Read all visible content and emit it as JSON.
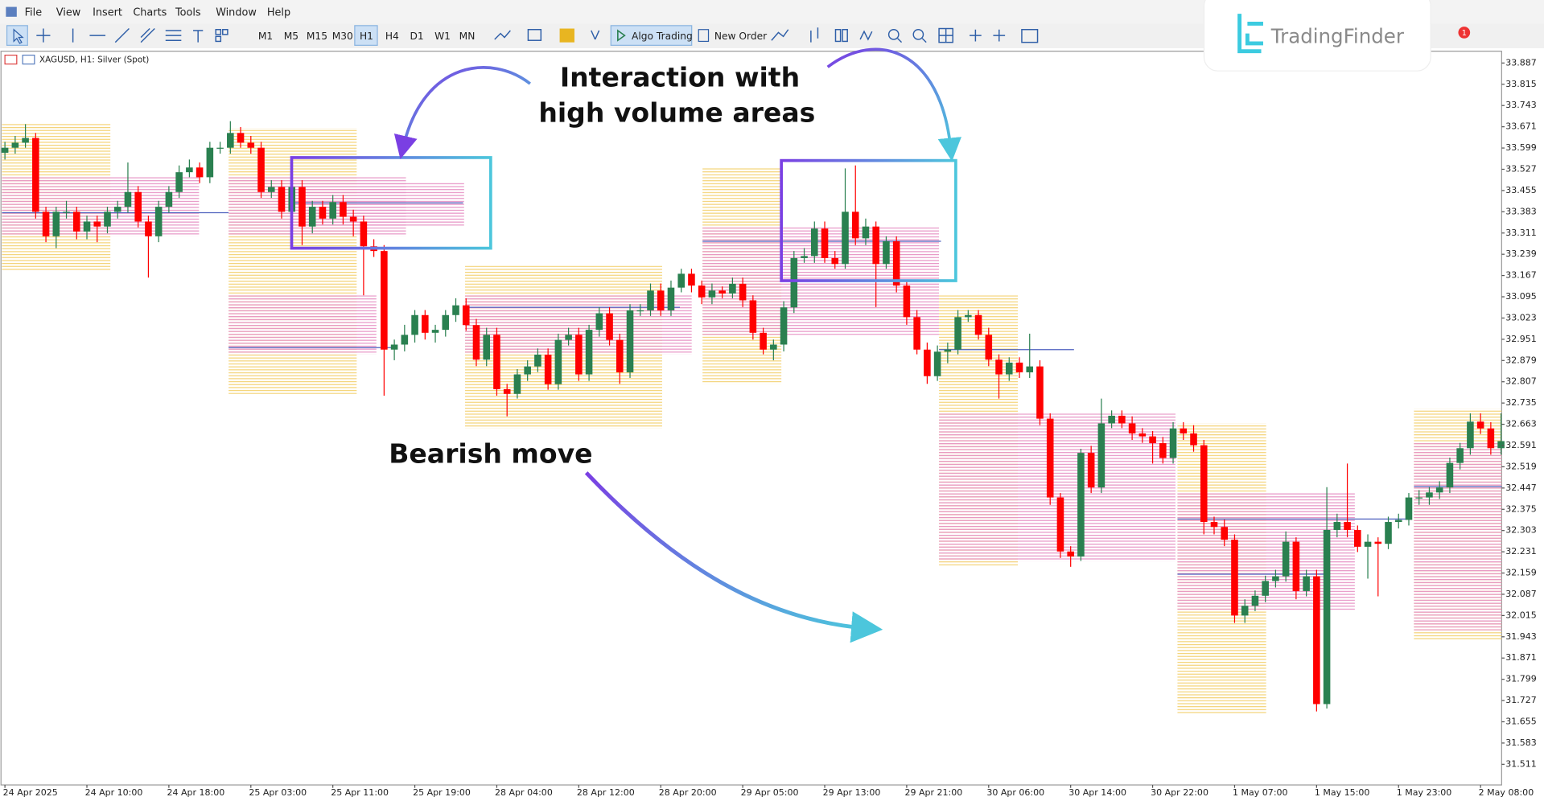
{
  "menu": [
    "File",
    "View",
    "Insert",
    "Charts",
    "Tools",
    "Window",
    "Help"
  ],
  "toolbar": {
    "timeframes": [
      "M1",
      "M5",
      "M15",
      "M30",
      "H1",
      "H4",
      "D1",
      "W1",
      "MN"
    ],
    "algo_trading": "Algo Trading",
    "new_order": "New Order"
  },
  "logo": "TradingFinder",
  "notification_count": "1",
  "chart_data": {
    "type": "candlestick",
    "title": "XAGUSD, H1:  Silver (Spot)",
    "annotations": [
      "Interaction with",
      "high volume areas",
      "Bearish move"
    ],
    "colors": {
      "up": "#2a8050",
      "down": "#ff0000"
    },
    "ylim": [
      31.441,
      33.927
    ],
    "yticks": [
      33.887,
      33.815,
      33.743,
      33.671,
      33.599,
      33.527,
      33.455,
      33.383,
      33.311,
      33.239,
      33.167,
      33.095,
      33.023,
      32.951,
      32.879,
      32.807,
      32.735,
      32.663,
      32.591,
      32.519,
      32.447,
      32.375,
      32.303,
      32.231,
      32.159,
      32.087,
      32.015,
      31.943,
      31.871,
      31.799,
      31.727,
      31.655,
      31.583,
      31.511
    ],
    "categories": [
      "24 Apr 2025",
      null,
      null,
      null,
      null,
      null,
      null,
      null,
      "24 Apr 10:00",
      null,
      null,
      null,
      null,
      null,
      null,
      null,
      "24 Apr 18:00",
      null,
      null,
      null,
      null,
      null,
      null,
      null,
      "25 Apr 03:00",
      null,
      null,
      null,
      null,
      null,
      null,
      null,
      "25 Apr 11:00",
      null,
      null,
      null,
      null,
      null,
      null,
      null,
      "25 Apr 19:00",
      null,
      null,
      null,
      null,
      null,
      null,
      null,
      "28 Apr 04:00",
      null,
      null,
      null,
      null,
      null,
      null,
      null,
      "28 Apr 12:00",
      null,
      null,
      null,
      null,
      null,
      null,
      null,
      "28 Apr 20:00",
      null,
      null,
      null,
      null,
      null,
      null,
      null,
      "29 Apr 05:00",
      null,
      null,
      null,
      null,
      null,
      null,
      null,
      "29 Apr 13:00",
      null,
      null,
      null,
      null,
      null,
      null,
      null,
      "29 Apr 21:00",
      null,
      null,
      null,
      null,
      null,
      null,
      null,
      "30 Apr 06:00",
      null,
      null,
      null,
      null,
      null,
      null,
      null,
      "30 Apr 14:00",
      null,
      null,
      null,
      null,
      null,
      null,
      null,
      "30 Apr 22:00",
      null,
      null,
      null,
      null,
      null,
      null,
      null,
      "1 May 07:00",
      null,
      null,
      null,
      null,
      null,
      null,
      null,
      "1 May 15:00",
      null,
      null,
      null,
      null,
      null,
      null,
      null,
      "1 May 23:00",
      null,
      null,
      null,
      null,
      null,
      null,
      null,
      "2 May 08:00",
      null,
      null
    ],
    "open": [
      33.583,
      33.6,
      33.617,
      33.633,
      33.383,
      33.3,
      33.383,
      33.383,
      33.316,
      33.35,
      33.333,
      33.383,
      33.4,
      33.45,
      33.35,
      33.3,
      33.4,
      33.45,
      33.517,
      33.533,
      33.5,
      33.6,
      33.6,
      33.65,
      33.617,
      33.6,
      33.45,
      33.467,
      33.383,
      33.467,
      33.333,
      33.4,
      33.36,
      33.416,
      33.366,
      33.35,
      33.266,
      33.25,
      32.916,
      32.933,
      32.966,
      33.033,
      32.973,
      32.983,
      33.033,
      33.066,
      32.999,
      32.882,
      32.966,
      32.782,
      32.766,
      32.832,
      32.859,
      32.899,
      32.799,
      32.949,
      32.966,
      32.832,
      32.983,
      33.039,
      32.949,
      32.839,
      33.049,
      33.049,
      33.116,
      33.049,
      33.126,
      33.173,
      33.133,
      33.093,
      33.116,
      33.106,
      33.139,
      33.083,
      32.973,
      32.916,
      32.933,
      33.059,
      33.226,
      33.233,
      33.326,
      33.226,
      33.206,
      33.383,
      33.293,
      33.333,
      33.206,
      33.283,
      33.133,
      33.026,
      32.916,
      32.826,
      32.909,
      32.916,
      33.026,
      33.033,
      32.966,
      32.882,
      32.832,
      32.872,
      32.839,
      32.859,
      32.682,
      32.415,
      32.232,
      32.215,
      32.566,
      32.449,
      32.666,
      32.692,
      32.666,
      32.632,
      32.622,
      32.599,
      32.549,
      32.649,
      32.632,
      32.592,
      32.332,
      32.315,
      32.272,
      32.015,
      32.048,
      32.082,
      32.132,
      32.148,
      32.265,
      32.098,
      32.148,
      31.715,
      32.305,
      32.332,
      32.305,
      32.248,
      32.265,
      32.258,
      32.332,
      32.339,
      32.415,
      32.415,
      32.432,
      32.449,
      32.532,
      32.582,
      32.672,
      32.649,
      32.582
    ],
    "high": [
      33.62,
      33.64,
      33.68,
      33.65,
      33.4,
      33.4,
      33.42,
      33.4,
      33.37,
      33.37,
      33.4,
      33.42,
      33.55,
      33.47,
      33.37,
      33.42,
      33.47,
      33.54,
      33.56,
      33.55,
      33.62,
      33.62,
      33.69,
      33.67,
      33.64,
      33.62,
      33.49,
      33.49,
      33.49,
      33.49,
      33.42,
      33.42,
      33.44,
      33.44,
      33.39,
      33.37,
      33.29,
      33.27,
      32.95,
      33.0,
      33.05,
      33.05,
      33.0,
      33.05,
      33.09,
      33.09,
      33.02,
      32.99,
      32.99,
      32.8,
      32.85,
      32.88,
      32.92,
      32.92,
      32.97,
      32.99,
      32.99,
      33.0,
      33.06,
      33.06,
      32.97,
      33.07,
      33.07,
      33.14,
      33.14,
      33.15,
      33.19,
      33.19,
      33.15,
      33.14,
      33.13,
      33.16,
      33.16,
      33.1,
      32.99,
      32.95,
      33.08,
      33.25,
      33.26,
      33.35,
      33.35,
      33.25,
      33.53,
      33.54,
      33.36,
      33.35,
      33.3,
      33.3,
      33.15,
      33.05,
      32.94,
      32.93,
      32.94,
      33.05,
      33.05,
      33.05,
      32.99,
      32.9,
      32.89,
      32.89,
      32.97,
      32.88,
      32.7,
      32.43,
      32.25,
      32.58,
      32.59,
      32.75,
      32.71,
      32.71,
      32.69,
      32.65,
      32.64,
      32.62,
      32.67,
      32.67,
      32.66,
      32.61,
      32.35,
      32.34,
      32.29,
      32.07,
      32.1,
      32.15,
      32.17,
      32.3,
      32.28,
      32.17,
      32.17,
      32.45,
      32.36,
      32.53,
      32.32,
      32.29,
      32.28,
      32.35,
      32.36,
      32.43,
      32.44,
      32.45,
      32.47,
      32.55,
      32.6,
      32.7,
      32.7,
      32.67,
      32.7
    ],
    "low": [
      33.56,
      33.58,
      33.6,
      33.36,
      33.28,
      33.26,
      33.36,
      33.29,
      33.29,
      33.28,
      33.31,
      33.36,
      33.38,
      33.33,
      33.16,
      33.28,
      33.38,
      33.43,
      33.5,
      33.48,
      33.48,
      33.58,
      33.58,
      33.6,
      33.58,
      33.43,
      33.43,
      33.36,
      33.36,
      33.27,
      33.31,
      33.34,
      33.34,
      33.34,
      33.3,
      33.1,
      33.23,
      32.76,
      32.88,
      32.91,
      32.94,
      32.95,
      32.94,
      32.96,
      33.01,
      32.98,
      32.86,
      32.86,
      32.76,
      32.69,
      32.75,
      32.81,
      32.84,
      32.78,
      32.78,
      32.93,
      32.81,
      32.81,
      32.96,
      32.93,
      32.8,
      32.82,
      33.03,
      33.03,
      33.03,
      33.03,
      33.11,
      33.11,
      33.07,
      33.07,
      33.09,
      33.09,
      33.06,
      32.95,
      32.9,
      32.88,
      32.91,
      33.04,
      33.21,
      33.21,
      33.21,
      33.19,
      33.19,
      33.27,
      33.27,
      33.06,
      33.19,
      33.11,
      33.0,
      32.9,
      32.8,
      32.81,
      32.87,
      32.9,
      33.01,
      32.95,
      32.86,
      32.75,
      32.81,
      32.82,
      32.82,
      32.66,
      32.39,
      32.21,
      32.18,
      32.2,
      32.43,
      32.43,
      32.65,
      32.65,
      32.61,
      32.6,
      32.53,
      32.53,
      32.53,
      32.61,
      32.57,
      32.29,
      32.29,
      32.25,
      31.99,
      31.99,
      32.03,
      32.06,
      32.11,
      32.13,
      32.07,
      32.08,
      31.69,
      31.7,
      32.28,
      32.28,
      32.23,
      32.14,
      32.08,
      32.24,
      32.31,
      32.32,
      32.39,
      32.39,
      32.41,
      32.43,
      32.51,
      32.56,
      32.63,
      32.56,
      32.56
    ],
    "close": [
      33.6,
      33.617,
      33.633,
      33.383,
      33.3,
      33.383,
      33.383,
      33.316,
      33.35,
      33.333,
      33.383,
      33.4,
      33.45,
      33.35,
      33.3,
      33.4,
      33.45,
      33.517,
      33.533,
      33.5,
      33.6,
      33.6,
      33.65,
      33.617,
      33.6,
      33.45,
      33.467,
      33.383,
      33.467,
      33.333,
      33.4,
      33.36,
      33.416,
      33.366,
      33.35,
      33.266,
      33.25,
      32.916,
      32.933,
      32.966,
      33.033,
      32.973,
      32.983,
      33.033,
      33.066,
      32.999,
      32.882,
      32.966,
      32.782,
      32.766,
      32.832,
      32.859,
      32.899,
      32.799,
      32.949,
      32.966,
      32.832,
      32.983,
      33.039,
      32.949,
      32.839,
      33.049,
      33.049,
      33.116,
      33.049,
      33.126,
      33.173,
      33.133,
      33.093,
      33.116,
      33.106,
      33.139,
      33.083,
      32.973,
      32.916,
      32.933,
      33.059,
      33.226,
      33.233,
      33.326,
      33.226,
      33.206,
      33.383,
      33.293,
      33.333,
      33.206,
      33.283,
      33.133,
      33.026,
      32.916,
      32.826,
      32.909,
      32.916,
      33.026,
      33.033,
      32.966,
      32.882,
      32.832,
      32.872,
      32.839,
      32.859,
      32.682,
      32.415,
      32.232,
      32.215,
      32.566,
      32.449,
      32.666,
      32.692,
      32.666,
      32.632,
      32.622,
      32.599,
      32.549,
      32.649,
      32.632,
      32.592,
      32.332,
      32.315,
      32.272,
      32.015,
      32.048,
      32.082,
      32.132,
      32.148,
      32.265,
      32.098,
      32.148,
      31.715,
      32.305,
      32.332,
      32.305,
      32.248,
      32.265,
      32.258,
      32.332,
      32.339,
      32.415,
      32.415,
      32.432,
      32.449,
      32.532,
      32.582,
      32.672,
      32.649,
      32.582,
      32.606
    ]
  }
}
